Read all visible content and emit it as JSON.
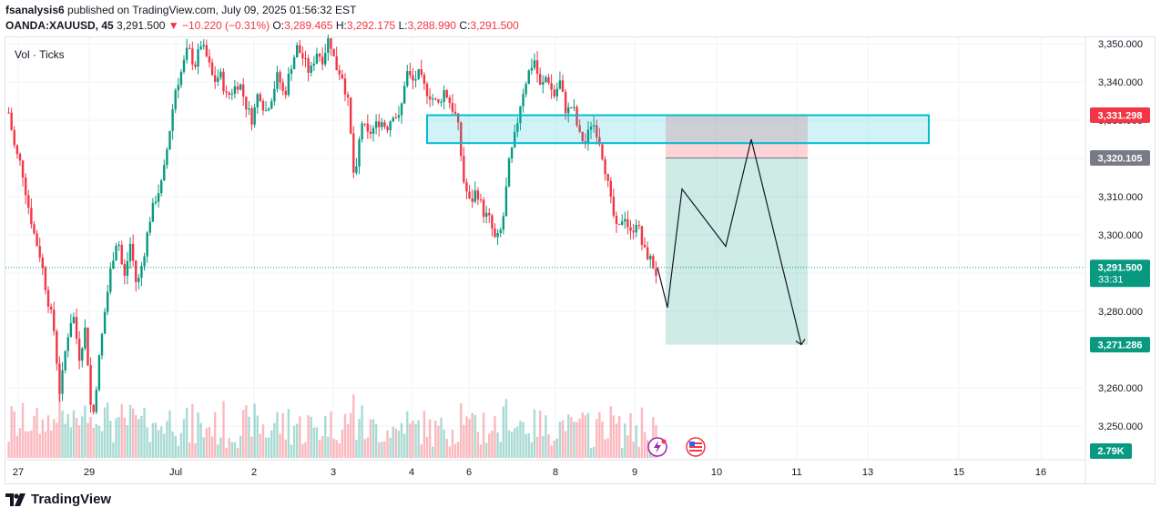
{
  "header": {
    "author": "fsanalysis6",
    "published_text": " published on TradingView.com, July 09, 2025 01:56:32 EST",
    "symbol": "OANDA:XAUUSD, 45",
    "last": "3,291.500",
    "change": "−10.220 (−0.31%)",
    "o_label": "O:",
    "o": "3,289.465",
    "h_label": "H:",
    "h": "3,292.175",
    "l_label": "L:",
    "l": "3,288.990",
    "c_label": "C:",
    "c": "3,291.500"
  },
  "volume_label": "Vol · Ticks",
  "footer": {
    "brand": "TradingView"
  },
  "colors": {
    "up": "#089981",
    "down": "#f23645",
    "zone": "#00bcd4",
    "target": "#089981",
    "stop": "#f23645"
  },
  "chart_data": {
    "type": "candlestick",
    "ylim": [
      3242,
      3353
    ],
    "y_ticks": [
      "3,350.000",
      "3,340.000",
      "3,330.000",
      "3,320.000",
      "3,310.000",
      "3,300.000",
      "3,290.000",
      "3,280.000",
      "3,260.000",
      "3,250.000"
    ],
    "y_tick_values": [
      3350,
      3340,
      3330,
      3320,
      3310,
      3300,
      3290,
      3280,
      3260,
      3250
    ],
    "x_labels": [
      "27",
      "29",
      "Jul",
      "2",
      "3",
      "4",
      "6",
      "8",
      "9",
      "10",
      "11",
      "13",
      "15",
      "16"
    ],
    "price_tags": [
      {
        "label": "3,331.298",
        "value": 3331.298,
        "color": "#f23645"
      },
      {
        "label": "3,320.105",
        "value": 3320.105,
        "color": "#787b86"
      },
      {
        "label": "3,291.500",
        "sub": "33:31",
        "value": 3291.5,
        "color": "#089981"
      },
      {
        "label": "3,271.286",
        "value": 3271.286,
        "color": "#089981"
      }
    ],
    "volume_tag": "2.79K",
    "current_price": 3291.5,
    "price_path": [
      3332,
      3322,
      3318,
      3308,
      3300,
      3294,
      3284,
      3276,
      3258,
      3272,
      3280,
      3268,
      3276,
      3250,
      3266,
      3280,
      3292,
      3300,
      3288,
      3298,
      3286,
      3294,
      3304,
      3310,
      3314,
      3326,
      3338,
      3343,
      3349,
      3344,
      3350,
      3346,
      3340,
      3342,
      3336,
      3338,
      3340,
      3334,
      3330,
      3338,
      3332,
      3336,
      3342,
      3336,
      3344,
      3349,
      3346,
      3342,
      3348,
      3346,
      3352,
      3344,
      3342,
      3334,
      3312,
      3330,
      3326,
      3328,
      3330,
      3328,
      3332,
      3330,
      3343,
      3340,
      3342,
      3338,
      3336,
      3334,
      3338,
      3334,
      3330,
      3314,
      3308,
      3312,
      3306,
      3304,
      3298,
      3302,
      3318,
      3326,
      3336,
      3342,
      3346,
      3338,
      3342,
      3336,
      3340,
      3332,
      3334,
      3326,
      3324,
      3330,
      3326,
      3318,
      3308,
      3300,
      3306,
      3300,
      3304,
      3296,
      3294,
      3290
    ],
    "scenario_path": [
      3291.5,
      3281,
      3312,
      3297,
      3325,
      3271.286
    ],
    "resistance_zone": [
      3324,
      3331.298
    ],
    "position": {
      "entry": 3320.105,
      "stop": 3331.298,
      "target": 3271.286
    }
  }
}
